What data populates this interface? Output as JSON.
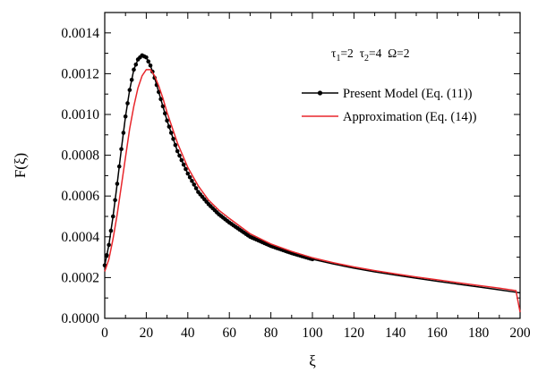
{
  "chart_data": {
    "type": "line",
    "xlabel": "ξ",
    "ylabel": "F(ξ)",
    "xlim": [
      0,
      200
    ],
    "ylim": [
      0,
      0.0015
    ],
    "x_ticks": [
      0,
      20,
      40,
      60,
      80,
      100,
      120,
      140,
      160,
      180,
      200
    ],
    "x_tick_labels": [
      "0",
      "20",
      "40",
      "60",
      "80",
      "100",
      "120",
      "140",
      "160",
      "180",
      "200"
    ],
    "y_ticks": [
      0,
      0.0002,
      0.0004,
      0.0006,
      0.0008,
      0.001,
      0.0012,
      0.0014
    ],
    "y_tick_labels": [
      "0.0000",
      "0.0002",
      "0.0004",
      "0.0006",
      "0.0008",
      "0.0010",
      "0.0012",
      "0.0014"
    ],
    "grid": false,
    "legend_position": "top-right",
    "annotation": {
      "parts": [
        {
          "text": "τ",
          "sub": "1",
          "after": "=2  "
        },
        {
          "text": "τ",
          "sub": "2",
          "after": "=4  "
        },
        {
          "text": "Ω",
          "sub": "",
          "after": "=2"
        }
      ]
    },
    "series": [
      {
        "name": "Present Model (Eq. (11))",
        "color": "#000000",
        "marker": "circle",
        "points": [
          [
            0,
            0.00026
          ],
          [
            2,
            0.00036
          ],
          [
            4,
            0.0005
          ],
          [
            6,
            0.00066
          ],
          [
            8,
            0.00083
          ],
          [
            10,
            0.00099
          ],
          [
            12,
            0.00112
          ],
          [
            14,
            0.00122
          ],
          [
            16,
            0.00127
          ],
          [
            18,
            0.00129
          ],
          [
            20,
            0.00128
          ],
          [
            22,
            0.00124
          ],
          [
            24,
            0.00118
          ],
          [
            26,
            0.00111
          ],
          [
            28,
            0.00104
          ],
          [
            30,
            0.00097
          ],
          [
            35,
            0.00082
          ],
          [
            40,
            0.00071
          ],
          [
            45,
            0.00062
          ],
          [
            50,
            0.00056
          ],
          [
            55,
            0.00051
          ],
          [
            60,
            0.00047
          ],
          [
            70,
            0.0004
          ],
          [
            80,
            0.000355
          ],
          [
            90,
            0.00032
          ],
          [
            100,
            0.00029
          ],
          [
            110,
            0.000267
          ],
          [
            120,
            0.000246
          ],
          [
            130,
            0.000228
          ],
          [
            140,
            0.000212
          ],
          [
            150,
            0.000197
          ],
          [
            160,
            0.000182
          ],
          [
            170,
            0.000168
          ],
          [
            180,
            0.000154
          ],
          [
            190,
            0.00014
          ],
          [
            198,
            0.000128
          ],
          [
            200,
            0.000125
          ]
        ]
      },
      {
        "name": "Approximation (Eq. (14))",
        "color": "#e8262b",
        "marker": "none",
        "points": [
          [
            0,
            0.00023
          ],
          [
            2,
            0.00029
          ],
          [
            4,
            0.00039
          ],
          [
            6,
            0.00051
          ],
          [
            8,
            0.00065
          ],
          [
            10,
            0.00079
          ],
          [
            12,
            0.00093
          ],
          [
            14,
            0.00104
          ],
          [
            16,
            0.00113
          ],
          [
            18,
            0.00119
          ],
          [
            20,
            0.00122
          ],
          [
            22,
            0.00122
          ],
          [
            24,
            0.00119
          ],
          [
            26,
            0.00114
          ],
          [
            28,
            0.00108
          ],
          [
            30,
            0.00101
          ],
          [
            35,
            0.00086
          ],
          [
            40,
            0.00074
          ],
          [
            45,
            0.00065
          ],
          [
            50,
            0.00058
          ],
          [
            55,
            0.00053
          ],
          [
            60,
            0.00049
          ],
          [
            70,
            0.000415
          ],
          [
            80,
            0.000365
          ],
          [
            90,
            0.000328
          ],
          [
            100,
            0.000297
          ],
          [
            110,
            0.000273
          ],
          [
            120,
            0.000252
          ],
          [
            130,
            0.000234
          ],
          [
            140,
            0.000218
          ],
          [
            150,
            0.000203
          ],
          [
            160,
            0.000189
          ],
          [
            170,
            0.000175
          ],
          [
            180,
            0.000161
          ],
          [
            190,
            0.000148
          ],
          [
            198,
            0.000136
          ],
          [
            200,
            3e-05
          ]
        ]
      }
    ]
  }
}
